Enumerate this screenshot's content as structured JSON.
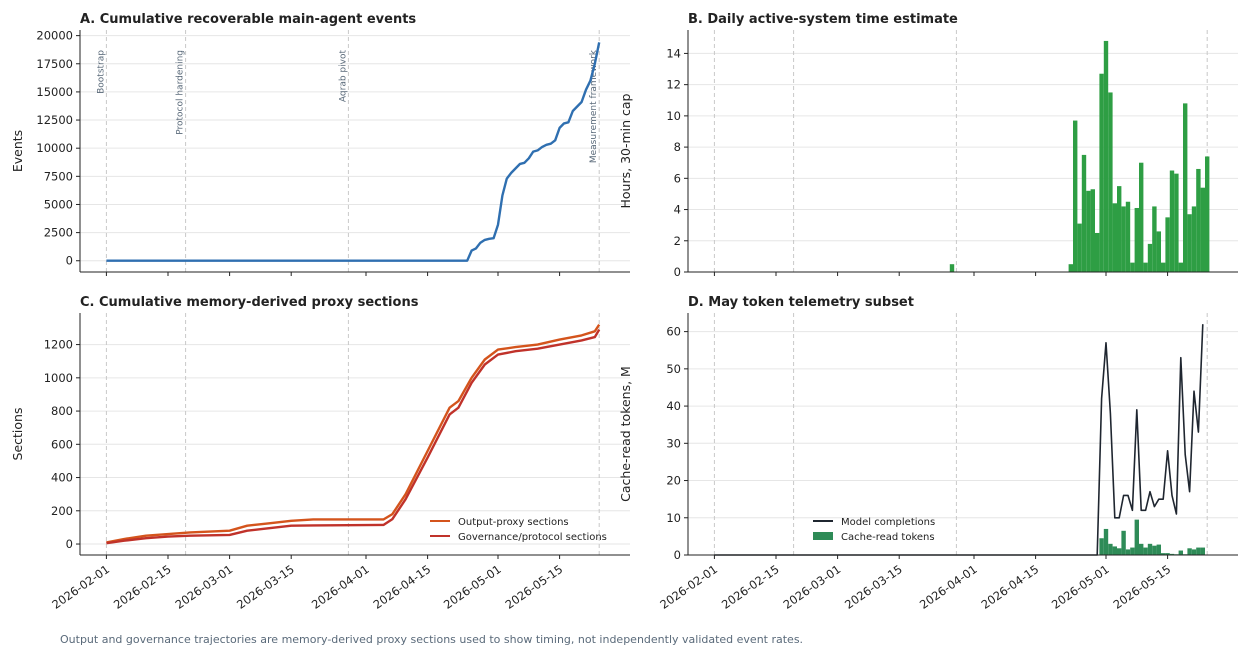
{
  "chart_data": [
    {
      "type": "line",
      "title": "A. Cumulative recoverable main-agent events",
      "ylabel": "Events",
      "x": [
        "2026-02-01",
        "2026-04-24",
        "2026-04-25",
        "2026-04-26",
        "2026-04-27",
        "2026-04-28",
        "2026-04-29",
        "2026-04-30",
        "2026-05-01",
        "2026-05-02",
        "2026-05-03",
        "2026-05-04",
        "2026-05-05",
        "2026-05-06",
        "2026-05-07",
        "2026-05-08",
        "2026-05-09",
        "2026-05-10",
        "2026-05-11",
        "2026-05-12",
        "2026-05-13",
        "2026-05-14",
        "2026-05-15",
        "2026-05-16",
        "2026-05-17",
        "2026-05-18",
        "2026-05-19",
        "2026-05-20",
        "2026-05-21",
        "2026-05-22",
        "2026-05-23",
        "2026-05-24"
      ],
      "series": [
        {
          "name": "Events",
          "color": "#2f6fb0",
          "values": [
            0,
            0,
            900,
            1100,
            1600,
            1850,
            1950,
            2000,
            3200,
            5800,
            7300,
            7800,
            8200,
            8600,
            8700,
            9100,
            9700,
            9800,
            10100,
            10300,
            10400,
            10700,
            11800,
            12200,
            12300,
            13300,
            13700,
            14100,
            15200,
            16000,
            17500,
            19400
          ]
        }
      ],
      "show_legend": false,
      "markers": [
        {
          "x": "2026-02-01",
          "label": "Bootstrap"
        },
        {
          "x": "2026-02-19",
          "label": "Protocol hardening"
        },
        {
          "x": "2026-03-28",
          "label": "Aqrab pivot"
        },
        {
          "x": "2026-05-24",
          "label": "Measurement framework"
        }
      ],
      "xlim": [
        "2026-01-26",
        "2026-05-31"
      ],
      "xticks": [
        "2026-02-01",
        "2026-02-15",
        "2026-03-01",
        "2026-03-15",
        "2026-04-01",
        "2026-04-15",
        "2026-05-01",
        "2026-05-15"
      ],
      "show_xtick_labels": false,
      "ylim": [
        -1000,
        20500
      ],
      "yticks": [
        0,
        2500,
        5000,
        7500,
        10000,
        12500,
        15000,
        17500,
        20000
      ],
      "grid": true
    },
    {
      "type": "bar",
      "title": "B. Daily active-system time estimate",
      "ylabel": "Hours, 30-min cap",
      "x": [
        "2026-03-27",
        "2026-04-23",
        "2026-04-24",
        "2026-04-25",
        "2026-04-26",
        "2026-04-27",
        "2026-04-28",
        "2026-04-29",
        "2026-04-30",
        "2026-05-01",
        "2026-05-02",
        "2026-05-03",
        "2026-05-04",
        "2026-05-05",
        "2026-05-06",
        "2026-05-07",
        "2026-05-08",
        "2026-05-09",
        "2026-05-10",
        "2026-05-11",
        "2026-05-12",
        "2026-05-13",
        "2026-05-14",
        "2026-05-15",
        "2026-05-16",
        "2026-05-17",
        "2026-05-18",
        "2026-05-19",
        "2026-05-20",
        "2026-05-21",
        "2026-05-22",
        "2026-05-23",
        "2026-05-24"
      ],
      "series": [
        {
          "name": "Hours",
          "color": "#2e9e44",
          "type": "bar",
          "values": [
            0.5,
            0.5,
            9.7,
            3.1,
            7.5,
            5.2,
            5.3,
            2.5,
            12.7,
            14.8,
            11.5,
            4.4,
            5.5,
            4.2,
            4.5,
            0.6,
            4.1,
            7.0,
            0.6,
            1.8,
            4.2,
            2.6,
            0.6,
            3.5,
            6.5,
            6.3,
            0.6,
            10.8,
            3.7,
            4.2,
            6.6,
            5.4,
            7.4
          ]
        }
      ],
      "show_legend": false,
      "markers": [
        {
          "x": "2026-02-01"
        },
        {
          "x": "2026-02-19"
        },
        {
          "x": "2026-03-28"
        },
        {
          "x": "2026-05-24"
        }
      ],
      "xlim": [
        "2026-01-26",
        "2026-05-31"
      ],
      "xticks": [
        "2026-02-01",
        "2026-02-15",
        "2026-03-01",
        "2026-03-15",
        "2026-04-01",
        "2026-04-15",
        "2026-05-01",
        "2026-05-15"
      ],
      "show_xtick_labels": false,
      "ylim": [
        0,
        15.5
      ],
      "yticks": [
        0,
        2,
        4,
        6,
        8,
        10,
        12,
        14
      ],
      "grid": true
    },
    {
      "type": "line",
      "title": "C. Cumulative memory-derived proxy sections",
      "ylabel": "Sections",
      "x": [
        "2026-02-01",
        "2026-02-05",
        "2026-02-10",
        "2026-02-15",
        "2026-02-20",
        "2026-03-01",
        "2026-03-05",
        "2026-03-10",
        "2026-03-15",
        "2026-03-20",
        "2026-04-05",
        "2026-04-07",
        "2026-04-10",
        "2026-04-15",
        "2026-04-20",
        "2026-04-22",
        "2026-04-25",
        "2026-04-28",
        "2026-05-01",
        "2026-05-05",
        "2026-05-10",
        "2026-05-15",
        "2026-05-20",
        "2026-05-23",
        "2026-05-24"
      ],
      "series": [
        {
          "name": "Output-proxy sections",
          "color": "#d4541c",
          "type": "line",
          "values": [
            10,
            30,
            50,
            60,
            70,
            80,
            110,
            125,
            140,
            148,
            148,
            180,
            300,
            560,
            820,
            860,
            1000,
            1110,
            1170,
            1185,
            1200,
            1230,
            1255,
            1280,
            1320
          ]
        },
        {
          "name": "Governance/protocol sections",
          "color": "#c0322a",
          "type": "line",
          "values": [
            5,
            20,
            35,
            45,
            50,
            55,
            80,
            95,
            110,
            112,
            115,
            150,
            270,
            520,
            780,
            820,
            970,
            1080,
            1140,
            1160,
            1175,
            1200,
            1225,
            1245,
            1290
          ]
        }
      ],
      "show_legend": true,
      "legend": "lower right",
      "markers": [
        {
          "x": "2026-02-01"
        },
        {
          "x": "2026-02-19"
        },
        {
          "x": "2026-03-28"
        },
        {
          "x": "2026-05-24"
        }
      ],
      "xlim": [
        "2026-01-26",
        "2026-05-31"
      ],
      "xticks": [
        "2026-02-01",
        "2026-02-15",
        "2026-03-01",
        "2026-03-15",
        "2026-04-01",
        "2026-04-15",
        "2026-05-01",
        "2026-05-15"
      ],
      "show_xtick_labels": true,
      "ylim": [
        -66,
        1390
      ],
      "yticks": [
        0,
        200,
        400,
        600,
        800,
        1000,
        1200
      ],
      "grid": true
    },
    {
      "type": "combo",
      "title": "D. May token telemetry subset",
      "ylabel": "Cache-read tokens, M",
      "x": [
        "2026-02-01",
        "2026-04-29",
        "2026-04-30",
        "2026-05-01",
        "2026-05-02",
        "2026-05-03",
        "2026-05-04",
        "2026-05-05",
        "2026-05-06",
        "2026-05-07",
        "2026-05-08",
        "2026-05-09",
        "2026-05-10",
        "2026-05-11",
        "2026-05-12",
        "2026-05-13",
        "2026-05-14",
        "2026-05-15",
        "2026-05-16",
        "2026-05-17",
        "2026-05-18",
        "2026-05-19",
        "2026-05-20",
        "2026-05-21",
        "2026-05-22",
        "2026-05-23"
      ],
      "series": [
        {
          "name": "Model completions",
          "color": "#1f2630",
          "type": "line",
          "values": [
            0,
            0,
            42,
            57,
            38,
            10,
            10,
            16,
            16,
            12,
            39,
            12,
            12,
            17,
            13,
            15,
            15,
            28,
            16,
            11,
            53,
            27,
            17,
            44,
            33,
            62
          ]
        },
        {
          "name": "Cache-read tokens",
          "color": "#2e8b57",
          "type": "bar",
          "values": [
            0,
            0,
            4.5,
            7,
            3,
            2.3,
            1.8,
            6.5,
            1.5,
            2,
            9.5,
            3,
            2,
            3,
            2.5,
            2.8,
            0.5,
            0.5,
            0.3,
            0.2,
            1.2,
            0.2,
            1.8,
            1.5,
            2,
            2
          ]
        }
      ],
      "show_legend": true,
      "legend": "lower center",
      "markers": [
        {
          "x": "2026-02-01"
        },
        {
          "x": "2026-02-19"
        },
        {
          "x": "2026-03-28"
        },
        {
          "x": "2026-05-24"
        }
      ],
      "xlim": [
        "2026-01-26",
        "2026-05-31"
      ],
      "xticks": [
        "2026-02-01",
        "2026-02-15",
        "2026-03-01",
        "2026-03-15",
        "2026-04-01",
        "2026-04-15",
        "2026-05-01",
        "2026-05-15"
      ],
      "show_xtick_labels": true,
      "ylim": [
        0,
        65
      ],
      "yticks": [
        0,
        10,
        20,
        30,
        40,
        50,
        60
      ],
      "grid": true
    }
  ],
  "footnote": "Output and governance trajectories are memory-derived proxy sections used to show timing, not independently validated event rates."
}
